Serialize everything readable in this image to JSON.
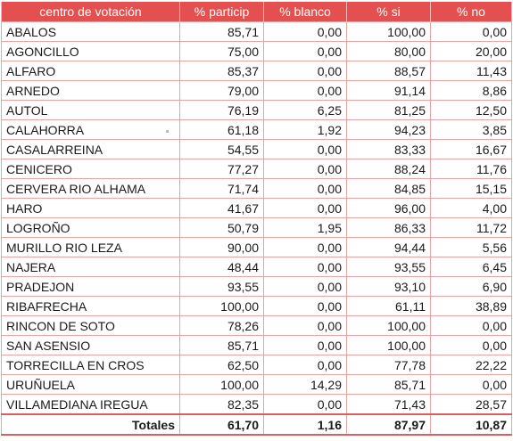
{
  "table": {
    "headers": [
      "centro de votación",
      "% particip",
      "% blanco",
      "% si",
      "% no"
    ],
    "rows": [
      {
        "name": "ABALOS",
        "particip": "85,71",
        "blanco": "0,00",
        "si": "100,00",
        "no": "0,00"
      },
      {
        "name": "AGONCILLO",
        "particip": "75,00",
        "blanco": "0,00",
        "si": "80,00",
        "no": "20,00"
      },
      {
        "name": "ALFARO",
        "particip": "85,37",
        "blanco": "0,00",
        "si": "88,57",
        "no": "11,43"
      },
      {
        "name": "ARNEDO",
        "particip": "79,00",
        "blanco": "0,00",
        "si": "91,14",
        "no": "8,86"
      },
      {
        "name": "AUTOL",
        "particip": "76,19",
        "blanco": "6,25",
        "si": "81,25",
        "no": "12,50"
      },
      {
        "name": "CALAHORRA",
        "particip": "61,18",
        "blanco": "1,92",
        "si": "94,23",
        "no": "3,85"
      },
      {
        "name": "CASALARREINA",
        "particip": "54,55",
        "blanco": "0,00",
        "si": "83,33",
        "no": "16,67"
      },
      {
        "name": "CENICERO",
        "particip": "77,27",
        "blanco": "0,00",
        "si": "88,24",
        "no": "11,76"
      },
      {
        "name": "CERVERA RIO ALHAMA",
        "particip": "71,74",
        "blanco": "0,00",
        "si": "84,85",
        "no": "15,15"
      },
      {
        "name": "HARO",
        "particip": "41,67",
        "blanco": "0,00",
        "si": "96,00",
        "no": "4,00"
      },
      {
        "name": "LOGROÑO",
        "particip": "50,79",
        "blanco": "1,95",
        "si": "86,33",
        "no": "11,72"
      },
      {
        "name": "MURILLO RIO LEZA",
        "particip": "90,00",
        "blanco": "0,00",
        "si": "94,44",
        "no": "5,56"
      },
      {
        "name": "NAJERA",
        "particip": "48,44",
        "blanco": "0,00",
        "si": "93,55",
        "no": "6,45"
      },
      {
        "name": "PRADEJON",
        "particip": "93,55",
        "blanco": "0,00",
        "si": "93,10",
        "no": "6,90"
      },
      {
        "name": "RIBAFRECHA",
        "particip": "100,00",
        "blanco": "0,00",
        "si": "61,11",
        "no": "38,89"
      },
      {
        "name": "RINCON DE SOTO",
        "particip": "78,26",
        "blanco": "0,00",
        "si": "100,00",
        "no": "0,00"
      },
      {
        "name": "SAN ASENSIO",
        "particip": "85,71",
        "blanco": "0,00",
        "si": "100,00",
        "no": "0,00"
      },
      {
        "name": "TORRECILLA EN CROS",
        "particip": "62,50",
        "blanco": "0,00",
        "si": "77,78",
        "no": "22,22"
      },
      {
        "name": "URUÑUELA",
        "particip": "100,00",
        "blanco": "14,29",
        "si": "85,71",
        "no": "0,00"
      },
      {
        "name": "VILLAMEDIANA IREGUA",
        "particip": "82,35",
        "blanco": "0,00",
        "si": "71,43",
        "no": "28,57"
      }
    ],
    "totals": {
      "label": "Totales",
      "particip": "61,70",
      "blanco": "1,16",
      "si": "87,97",
      "no": "10,87"
    }
  },
  "colors": {
    "header_bg": "#e4504f",
    "header_text": "#ffffff",
    "grid": "#e9a3a2"
  }
}
